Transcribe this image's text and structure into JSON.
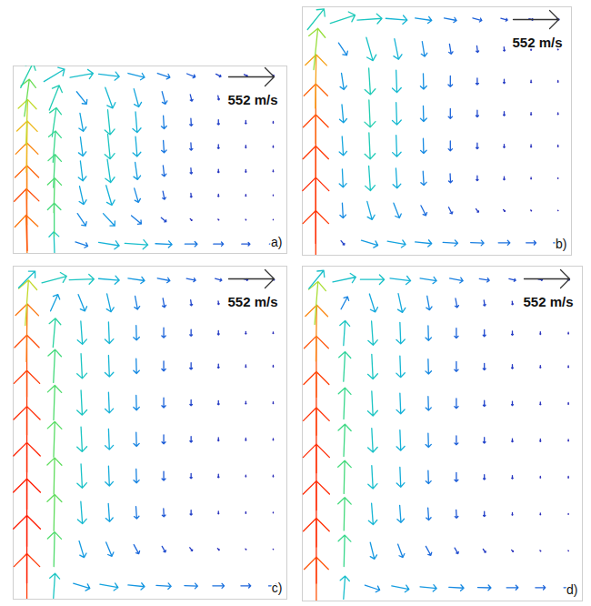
{
  "chart_data": [
    {
      "type": "vector",
      "title": "a)",
      "reference": {
        "value": 552,
        "label": "552 m/s"
      },
      "clim": [
        0,
        820
      ],
      "xlim": [
        0,
        1
      ],
      "ylim": [
        0,
        1
      ],
      "tick_labels": false,
      "x": [
        0.05,
        0.15,
        0.25,
        0.35,
        0.45,
        0.55,
        0.65,
        0.75,
        0.85,
        0.95
      ],
      "y": [
        0.05,
        0.18,
        0.31,
        0.44,
        0.57,
        0.7,
        0.83,
        0.95
      ],
      "u": [
        [
          -20,
          -10,
          150,
          250,
          280,
          200,
          150,
          120,
          100,
          90
        ],
        [
          -10,
          0,
          100,
          140,
          120,
          60,
          20,
          10,
          5,
          0
        ],
        [
          0,
          10,
          50,
          70,
          50,
          20,
          5,
          0,
          0,
          0
        ],
        [
          0,
          20,
          30,
          40,
          30,
          15,
          5,
          0,
          0,
          0
        ],
        [
          10,
          30,
          30,
          30,
          20,
          10,
          5,
          0,
          0,
          0
        ],
        [
          20,
          50,
          40,
          30,
          20,
          10,
          5,
          0,
          0,
          0
        ],
        [
          60,
          120,
          120,
          90,
          60,
          40,
          20,
          10,
          5,
          0
        ],
        [
          150,
          250,
          280,
          250,
          200,
          150,
          100,
          60,
          40,
          20
        ]
      ],
      "v": [
        [
          700,
          300,
          -50,
          -40,
          -20,
          -10,
          0,
          0,
          0,
          0
        ],
        [
          750,
          400,
          -150,
          -150,
          -100,
          -50,
          -20,
          -10,
          -10,
          -5
        ],
        [
          720,
          420,
          -220,
          -240,
          -170,
          -100,
          -50,
          -30,
          -20,
          -10
        ],
        [
          680,
          400,
          -240,
          -280,
          -210,
          -130,
          -70,
          -40,
          -30,
          -20
        ],
        [
          620,
          380,
          -230,
          -300,
          -240,
          -150,
          -90,
          -50,
          -30,
          -20
        ],
        [
          550,
          350,
          -220,
          -300,
          -250,
          -160,
          -90,
          -60,
          -40,
          -20
        ],
        [
          450,
          300,
          -150,
          -250,
          -220,
          -150,
          -80,
          -50,
          -30,
          -20
        ],
        [
          300,
          150,
          50,
          -30,
          -50,
          -50,
          -40,
          -30,
          -20,
          -10
        ]
      ]
    },
    {
      "type": "vector",
      "title": "b)",
      "reference": {
        "value": 552,
        "label": "552 m/s"
      },
      "clim": [
        0,
        820
      ],
      "xlim": [
        0,
        1
      ],
      "ylim": [
        0,
        1
      ],
      "tick_labels": false,
      "x": [
        0.05,
        0.15,
        0.25,
        0.35,
        0.45,
        0.55,
        0.65,
        0.75,
        0.85,
        0.95
      ],
      "y": [
        0.05,
        0.18,
        0.31,
        0.44,
        0.57,
        0.7,
        0.83,
        0.95
      ],
      "u": [
        [
          0,
          40,
          200,
          220,
          200,
          180,
          160,
          140,
          120,
          110
        ],
        [
          0,
          10,
          60,
          70,
          60,
          40,
          30,
          20,
          10,
          5
        ],
        [
          0,
          10,
          20,
          15,
          10,
          5,
          0,
          0,
          0,
          0
        ],
        [
          0,
          15,
          15,
          10,
          5,
          0,
          0,
          0,
          0,
          0
        ],
        [
          0,
          20,
          15,
          10,
          5,
          0,
          0,
          0,
          0,
          0
        ],
        [
          10,
          30,
          20,
          10,
          5,
          0,
          0,
          0,
          0,
          0
        ],
        [
          50,
          100,
          80,
          50,
          30,
          20,
          10,
          5,
          0,
          0
        ],
        [
          200,
          300,
          300,
          260,
          200,
          150,
          110,
          80,
          50,
          30
        ]
      ],
      "v": [
        [
          780,
          -50,
          -60,
          -40,
          -20,
          -10,
          -5,
          0,
          0,
          0
        ],
        [
          800,
          -180,
          -220,
          -180,
          -120,
          -80,
          -40,
          -20,
          -10,
          -5
        ],
        [
          780,
          -220,
          -300,
          -240,
          -170,
          -110,
          -60,
          -40,
          -20,
          -10
        ],
        [
          760,
          -230,
          -320,
          -260,
          -180,
          -120,
          -70,
          -40,
          -30,
          -20
        ],
        [
          720,
          -220,
          -330,
          -270,
          -190,
          -120,
          -80,
          -50,
          -30,
          -20
        ],
        [
          650,
          -200,
          -320,
          -270,
          -190,
          -130,
          -80,
          -50,
          -30,
          -20
        ],
        [
          500,
          -150,
          -280,
          -250,
          -180,
          -120,
          -80,
          -50,
          -30,
          -20
        ],
        [
          250,
          100,
          20,
          -20,
          -30,
          -30,
          -30,
          -20,
          -10,
          -10
        ]
      ]
    },
    {
      "type": "vector",
      "title": "c)",
      "reference": {
        "value": 552,
        "label": "552 m/s"
      },
      "clim": [
        0,
        820
      ],
      "xlim": [
        0,
        1
      ],
      "ylim": [
        0,
        1
      ],
      "tick_labels": false,
      "x": [
        0.05,
        0.15,
        0.25,
        0.35,
        0.45,
        0.55,
        0.65,
        0.75,
        0.85,
        0.95
      ],
      "y": [
        0.04,
        0.15,
        0.26,
        0.37,
        0.48,
        0.59,
        0.7,
        0.8,
        0.89,
        0.96
      ],
      "u": [
        [
          0,
          20,
          200,
          220,
          200,
          180,
          160,
          140,
          120,
          110
        ],
        [
          0,
          10,
          60,
          70,
          60,
          40,
          30,
          20,
          10,
          5
        ],
        [
          0,
          10,
          20,
          15,
          10,
          5,
          0,
          0,
          0,
          0
        ],
        [
          0,
          10,
          15,
          10,
          5,
          0,
          0,
          0,
          0,
          0
        ],
        [
          0,
          15,
          15,
          10,
          5,
          0,
          0,
          0,
          0,
          0
        ],
        [
          0,
          15,
          15,
          10,
          5,
          0,
          0,
          0,
          0,
          0
        ],
        [
          0,
          20,
          15,
          10,
          5,
          0,
          0,
          0,
          0,
          0
        ],
        [
          10,
          30,
          20,
          10,
          5,
          0,
          0,
          0,
          0,
          0
        ],
        [
          40,
          90,
          80,
          50,
          30,
          20,
          10,
          5,
          0,
          0
        ],
        [
          200,
          300,
          300,
          250,
          200,
          150,
          110,
          80,
          50,
          30
        ]
      ],
      "v": [
        [
          780,
          300,
          -60,
          -40,
          -20,
          -10,
          -5,
          0,
          0,
          0
        ],
        [
          820,
          420,
          -200,
          -170,
          -110,
          -70,
          -40,
          -20,
          -10,
          -5
        ],
        [
          820,
          440,
          -270,
          -220,
          -150,
          -100,
          -60,
          -30,
          -20,
          -10
        ],
        [
          810,
          440,
          -290,
          -240,
          -170,
          -110,
          -60,
          -40,
          -20,
          -20
        ],
        [
          800,
          430,
          -300,
          -250,
          -170,
          -110,
          -70,
          -40,
          -30,
          -20
        ],
        [
          780,
          420,
          -300,
          -250,
          -180,
          -120,
          -70,
          -50,
          -30,
          -20
        ],
        [
          750,
          400,
          -300,
          -260,
          -180,
          -120,
          -80,
          -50,
          -30,
          -20
        ],
        [
          700,
          350,
          -280,
          -260,
          -180,
          -120,
          -80,
          -50,
          -30,
          -20
        ],
        [
          550,
          200,
          -200,
          -220,
          -160,
          -110,
          -70,
          -40,
          -30,
          -20
        ],
        [
          200,
          80,
          10,
          -20,
          -30,
          -30,
          -20,
          -20,
          -10,
          -10
        ]
      ]
    },
    {
      "type": "vector",
      "title": "d)",
      "reference": {
        "value": 552,
        "label": "552 m/s"
      },
      "clim": [
        0,
        820
      ],
      "xlim": [
        0,
        1
      ],
      "ylim": [
        0,
        1
      ],
      "tick_labels": false,
      "x": [
        0.05,
        0.15,
        0.25,
        0.35,
        0.45,
        0.55,
        0.65,
        0.75,
        0.85,
        0.95
      ],
      "y": [
        0.04,
        0.15,
        0.26,
        0.37,
        0.48,
        0.59,
        0.7,
        0.8,
        0.89,
        0.96
      ],
      "u": [
        [
          0,
          20,
          180,
          210,
          200,
          180,
          160,
          140,
          120,
          110
        ],
        [
          0,
          10,
          50,
          60,
          60,
          40,
          30,
          20,
          10,
          5
        ],
        [
          0,
          10,
          20,
          15,
          10,
          5,
          0,
          0,
          0,
          0
        ],
        [
          0,
          10,
          15,
          10,
          5,
          0,
          0,
          0,
          0,
          0
        ],
        [
          0,
          15,
          15,
          10,
          5,
          0,
          0,
          0,
          0,
          0
        ],
        [
          0,
          15,
          15,
          10,
          5,
          0,
          0,
          0,
          0,
          0
        ],
        [
          0,
          20,
          15,
          10,
          5,
          0,
          0,
          0,
          0,
          0
        ],
        [
          10,
          20,
          20,
          10,
          5,
          0,
          0,
          0,
          0,
          0
        ],
        [
          40,
          80,
          70,
          50,
          30,
          20,
          10,
          5,
          0,
          0
        ],
        [
          180,
          280,
          290,
          250,
          200,
          160,
          120,
          80,
          50,
          30
        ]
      ],
      "v": [
        [
          740,
          280,
          -60,
          -40,
          -20,
          -10,
          -5,
          0,
          0,
          0
        ],
        [
          790,
          380,
          -200,
          -160,
          -110,
          -70,
          -40,
          -20,
          -10,
          -5
        ],
        [
          800,
          400,
          -260,
          -210,
          -150,
          -100,
          -60,
          -30,
          -20,
          -10
        ],
        [
          800,
          400,
          -280,
          -240,
          -160,
          -110,
          -60,
          -40,
          -20,
          -20
        ],
        [
          790,
          390,
          -290,
          -250,
          -170,
          -110,
          -70,
          -40,
          -30,
          -20
        ],
        [
          770,
          380,
          -300,
          -250,
          -170,
          -120,
          -70,
          -50,
          -30,
          -20
        ],
        [
          740,
          360,
          -300,
          -260,
          -180,
          -120,
          -80,
          -50,
          -30,
          -20
        ],
        [
          680,
          300,
          -290,
          -260,
          -180,
          -120,
          -80,
          -50,
          -30,
          -20
        ],
        [
          520,
          150,
          -220,
          -230,
          -170,
          -110,
          -70,
          -40,
          -30,
          -20
        ],
        [
          220,
          60,
          0,
          -30,
          -30,
          -30,
          -20,
          -20,
          -10,
          -10
        ]
      ]
    }
  ]
}
